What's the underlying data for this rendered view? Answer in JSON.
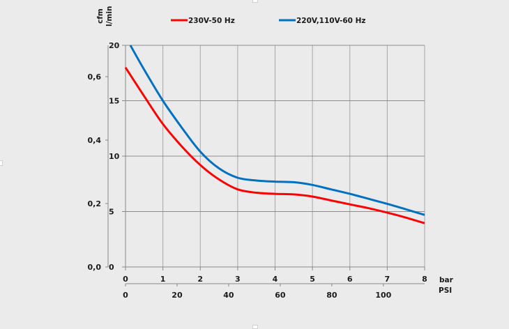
{
  "chart_data": {
    "type": "line",
    "title": "",
    "legend_position": "top",
    "grid": true,
    "x_axes": [
      {
        "label": "bar",
        "range": [
          0,
          8
        ],
        "ticks": [
          "0",
          "1",
          "2",
          "3",
          "4",
          "5",
          "6",
          "7",
          "8"
        ],
        "tick_values": [
          0,
          1,
          2,
          3,
          4,
          5,
          6,
          7,
          8
        ]
      },
      {
        "label": "PSI",
        "range": [
          0,
          116
        ],
        "ticks": [
          "0",
          "20",
          "40",
          "60",
          "80",
          "100"
        ],
        "tick_values": [
          0,
          20,
          40,
          60,
          80,
          100
        ]
      }
    ],
    "y_axes": [
      {
        "label": "cfm",
        "range": [
          0,
          0.7
        ],
        "ticks": [
          "0,0",
          "0,2",
          "0,4",
          "0,6"
        ],
        "tick_values": [
          0,
          0.2,
          0.4,
          0.6
        ]
      },
      {
        "label": "l/min",
        "range": [
          0,
          20
        ],
        "ticks": [
          "0",
          "5",
          "10",
          "15",
          "20"
        ],
        "tick_values": [
          0,
          5,
          10,
          15,
          20
        ]
      }
    ],
    "series": [
      {
        "name": "230V-50 Hz",
        "color": "#ff0000",
        "x": [
          0,
          0.5,
          1,
          1.5,
          2,
          2.5,
          3,
          3.5,
          4,
          4.5,
          5,
          5.5,
          6,
          6.5,
          7,
          7.5,
          8
        ],
        "y": [
          18.0,
          15.4,
          12.9,
          10.9,
          9.2,
          7.9,
          7.0,
          6.7,
          6.6,
          6.55,
          6.35,
          6.0,
          5.65,
          5.3,
          4.9,
          4.45,
          3.95
        ]
      },
      {
        "name": "220V,110V-60 Hz",
        "color": "#0070c0",
        "x": [
          0.13,
          0.5,
          1,
          1.5,
          2,
          2.5,
          3,
          3.5,
          4,
          4.5,
          5,
          5.5,
          6,
          6.5,
          7,
          7.5,
          8
        ],
        "y": [
          20.0,
          17.8,
          15.0,
          12.6,
          10.4,
          8.9,
          8.05,
          7.8,
          7.7,
          7.65,
          7.4,
          7.0,
          6.6,
          6.15,
          5.7,
          5.2,
          4.7
        ]
      }
    ]
  }
}
